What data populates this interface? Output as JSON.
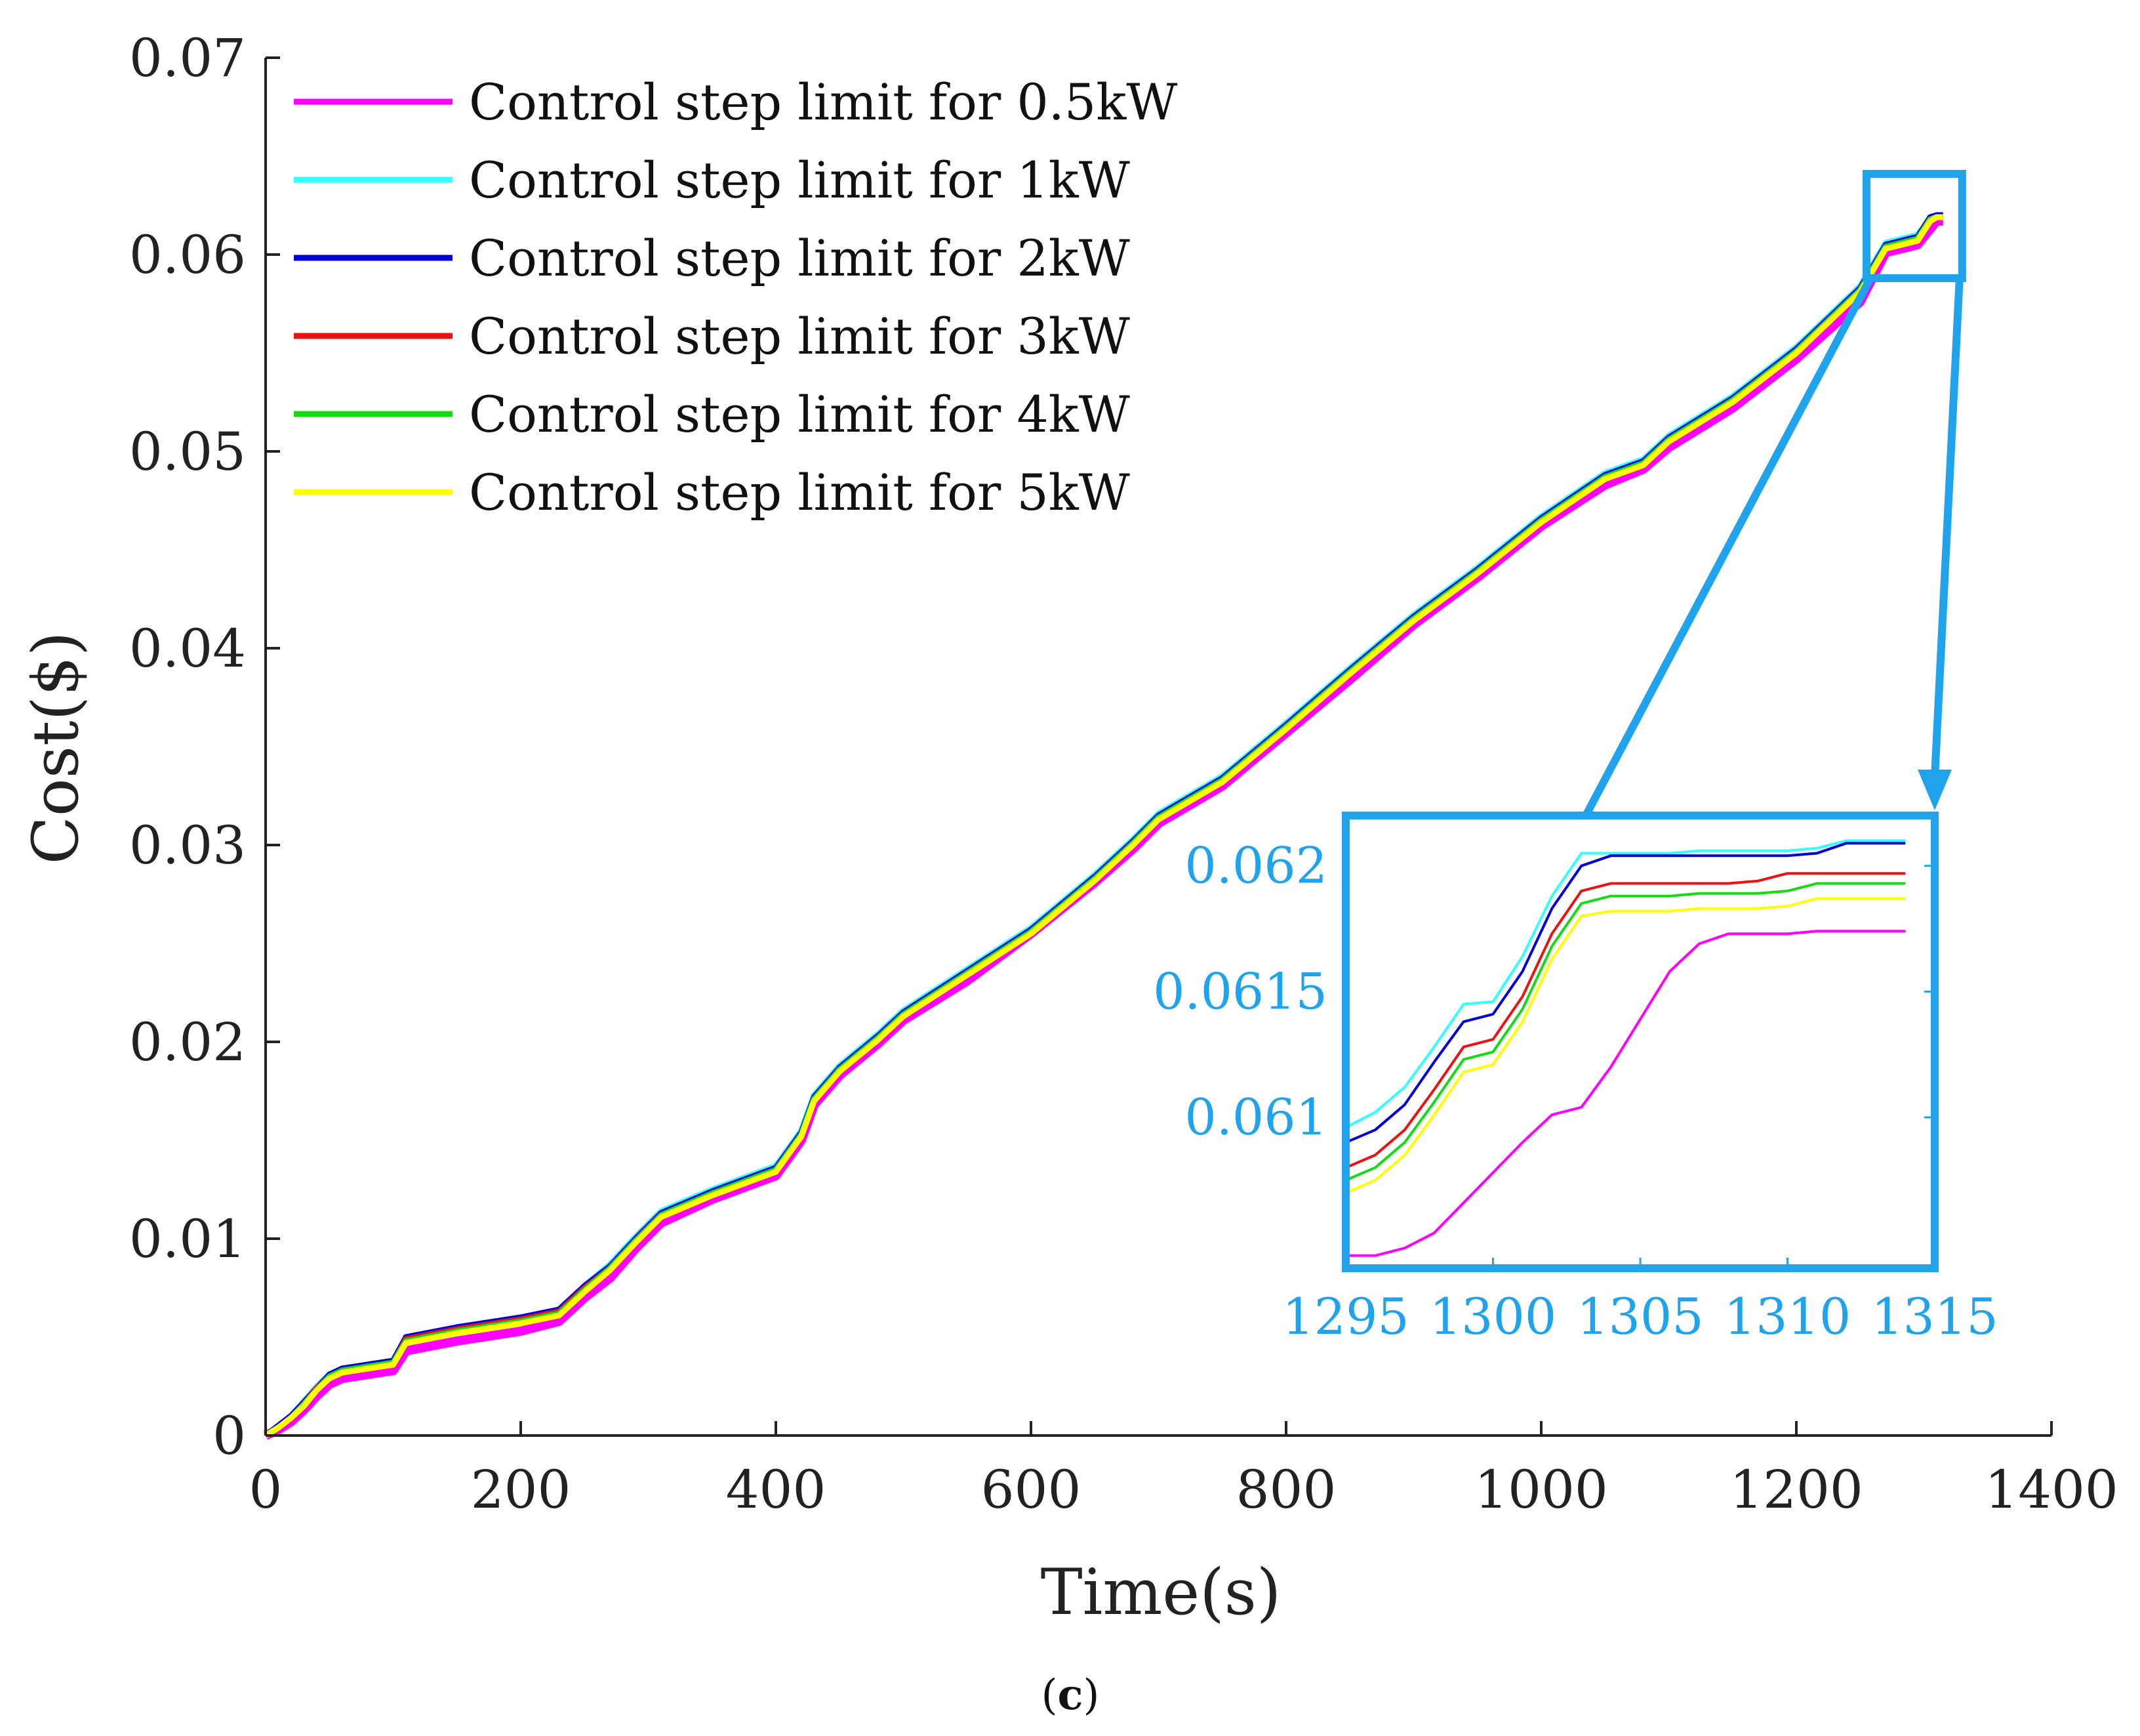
{
  "chart_data": [
    {
      "type": "line",
      "title": "",
      "xlabel": "Time(s)",
      "ylabel": "Cost($)",
      "xlim": [
        0,
        1400
      ],
      "ylim": [
        0,
        0.07
      ],
      "xticks": [
        0,
        200,
        400,
        600,
        800,
        1000,
        1200,
        1400
      ],
      "xtick_labels": [
        "0",
        "200",
        "400",
        "600",
        "800",
        "1000",
        "1200",
        "1400"
      ],
      "yticks": [
        0,
        0.01,
        0.02,
        0.03,
        0.04,
        0.05,
        0.06,
        0.07
      ],
      "ytick_labels": [
        "0",
        "0.01",
        "0.02",
        "0.03",
        "0.04",
        "0.05",
        "0.06",
        "0.07"
      ],
      "legend_position": "top-left",
      "x": [
        0,
        10,
        20,
        30,
        40,
        50,
        60,
        80,
        100,
        110,
        150,
        200,
        230,
        250,
        270,
        290,
        310,
        350,
        400,
        420,
        430,
        450,
        480,
        500,
        550,
        600,
        650,
        680,
        700,
        750,
        800,
        850,
        900,
        950,
        1000,
        1050,
        1080,
        1100,
        1150,
        1200,
        1250,
        1270,
        1295,
        1300,
        1305,
        1310,
        1315
      ],
      "series": [
        {
          "name": "Control step limit for 0.5kW",
          "color": "#ff00ff",
          "values": [
            0,
            0.0003,
            0.0007,
            0.0013,
            0.002,
            0.0026,
            0.0029,
            0.0031,
            0.0033,
            0.0043,
            0.0048,
            0.0053,
            0.0058,
            0.007,
            0.008,
            0.0095,
            0.0108,
            0.012,
            0.0132,
            0.015,
            0.0168,
            0.0183,
            0.0199,
            0.0211,
            0.0231,
            0.0255,
            0.0281,
            0.0298,
            0.0311,
            0.033,
            0.0357,
            0.0384,
            0.0412,
            0.0436,
            0.0462,
            0.0483,
            0.0491,
            0.0502,
            0.0522,
            0.0547,
            0.0576,
            0.0601,
            0.0605,
            0.0609,
            0.0613,
            0.0617,
            0.0617
          ]
        },
        {
          "name": "Control step limit for 1kW",
          "color": "#33ffff",
          "values": [
            0,
            0.0005,
            0.001,
            0.0017,
            0.0025,
            0.0031,
            0.0034,
            0.0036,
            0.0038,
            0.005,
            0.0055,
            0.006,
            0.0064,
            0.0076,
            0.0087,
            0.0101,
            0.0114,
            0.0125,
            0.0137,
            0.0155,
            0.0173,
            0.0188,
            0.0204,
            0.0216,
            0.0237,
            0.0258,
            0.0285,
            0.0303,
            0.0316,
            0.0335,
            0.0362,
            0.039,
            0.0417,
            0.0441,
            0.0467,
            0.0489,
            0.0496,
            0.0508,
            0.0528,
            0.0553,
            0.0584,
            0.0606,
            0.061,
            0.0614,
            0.0619,
            0.062,
            0.062
          ]
        },
        {
          "name": "Control step limit for 2kW",
          "color": "#0000dd",
          "values": [
            0,
            0.0005,
            0.001,
            0.0017,
            0.0024,
            0.0031,
            0.0034,
            0.0036,
            0.0038,
            0.005,
            0.0055,
            0.006,
            0.0064,
            0.0076,
            0.0086,
            0.01,
            0.0113,
            0.0124,
            0.0136,
            0.0154,
            0.0172,
            0.0187,
            0.0203,
            0.0215,
            0.0236,
            0.0257,
            0.0284,
            0.0302,
            0.0315,
            0.0334,
            0.0361,
            0.0389,
            0.0416,
            0.044,
            0.0466,
            0.0488,
            0.0495,
            0.0507,
            0.0527,
            0.0552,
            0.0583,
            0.0605,
            0.0609,
            0.0614,
            0.0619,
            0.062,
            0.062
          ]
        },
        {
          "name": "Control step limit for 3kW",
          "color": "#ee1111",
          "values": [
            0,
            0.0004,
            0.0009,
            0.0016,
            0.0024,
            0.003,
            0.0033,
            0.0035,
            0.0037,
            0.0049,
            0.0054,
            0.0059,
            0.0063,
            0.0075,
            0.0085,
            0.0099,
            0.0112,
            0.0123,
            0.0135,
            0.0153,
            0.0171,
            0.0186,
            0.0202,
            0.0214,
            0.0235,
            0.0256,
            0.0283,
            0.0301,
            0.0314,
            0.0333,
            0.036,
            0.0388,
            0.0415,
            0.0439,
            0.0465,
            0.0487,
            0.0494,
            0.0506,
            0.0526,
            0.0551,
            0.0582,
            0.0604,
            0.0608,
            0.0613,
            0.0618,
            0.0619,
            0.0619
          ]
        },
        {
          "name": "Control step limit for 4kW",
          "color": "#11dd11",
          "values": [
            0,
            0.0004,
            0.0009,
            0.0016,
            0.0023,
            0.003,
            0.0033,
            0.0035,
            0.0037,
            0.0048,
            0.0053,
            0.0058,
            0.0062,
            0.0074,
            0.0085,
            0.0099,
            0.0112,
            0.0123,
            0.0135,
            0.0153,
            0.0171,
            0.0186,
            0.0202,
            0.0214,
            0.0235,
            0.0256,
            0.0283,
            0.0301,
            0.0314,
            0.0333,
            0.036,
            0.0388,
            0.0415,
            0.0439,
            0.0465,
            0.0487,
            0.0494,
            0.0506,
            0.0526,
            0.0551,
            0.0582,
            0.0604,
            0.0608,
            0.0613,
            0.0618,
            0.0619,
            0.0619
          ]
        },
        {
          "name": "Control step limit for 5kW",
          "color": "#ffff00",
          "values": [
            0,
            0.0004,
            0.0009,
            0.0015,
            0.0023,
            0.0029,
            0.0032,
            0.0034,
            0.0036,
            0.0047,
            0.0052,
            0.0057,
            0.0061,
            0.0073,
            0.0084,
            0.0098,
            0.0111,
            0.0122,
            0.0134,
            0.0152,
            0.017,
            0.0185,
            0.0201,
            0.0213,
            0.0234,
            0.0255,
            0.0282,
            0.03,
            0.0313,
            0.0332,
            0.0359,
            0.0387,
            0.0414,
            0.0438,
            0.0464,
            0.0486,
            0.0493,
            0.0505,
            0.0525,
            0.055,
            0.0581,
            0.0603,
            0.0607,
            0.0612,
            0.0617,
            0.0619,
            0.0619
          ]
        }
      ]
    },
    {
      "type": "line",
      "title": "",
      "role": "zoomed inset",
      "xlim": [
        1295,
        1315
      ],
      "ylim": [
        0.0604,
        0.0622
      ],
      "xticks": [
        1295,
        1300,
        1305,
        1310,
        1315
      ],
      "xtick_labels": [
        "1295",
        "1300",
        "1305",
        "1310",
        "1315"
      ],
      "yticks": [
        0.061,
        0.0615,
        0.062
      ],
      "ytick_labels": [
        "0.061",
        "0.0615",
        "0.062"
      ],
      "x": [
        1295,
        1296,
        1297,
        1298,
        1299,
        1300,
        1301,
        1302,
        1303,
        1304,
        1305,
        1306,
        1307,
        1308,
        1309,
        1310,
        1311,
        1312,
        1313,
        1314
      ],
      "series": [
        {
          "name": "Control step limit for 0.5kW",
          "color": "#ff00ff",
          "values": [
            0.06045,
            0.06045,
            0.06048,
            0.06054,
            0.06066,
            0.06078,
            0.0609,
            0.06101,
            0.06104,
            0.0612,
            0.06139,
            0.06158,
            0.06169,
            0.06173,
            0.06173,
            0.06173,
            0.06174,
            0.06174,
            0.06174,
            0.06174
          ]
        },
        {
          "name": "Control step limit for 1kW",
          "color": "#33ffff",
          "values": [
            0.06096,
            0.06102,
            0.06112,
            0.06128,
            0.06145,
            0.06146,
            0.06164,
            0.06188,
            0.06205,
            0.06205,
            0.06205,
            0.06205,
            0.06206,
            0.06206,
            0.06206,
            0.06206,
            0.06207,
            0.0621,
            0.0621,
            0.0621
          ]
        },
        {
          "name": "Control step limit for 2kW",
          "color": "#0000dd",
          "values": [
            0.0609,
            0.06095,
            0.06105,
            0.06122,
            0.06138,
            0.06141,
            0.06158,
            0.06183,
            0.062,
            0.06204,
            0.06204,
            0.06204,
            0.06204,
            0.06204,
            0.06204,
            0.06204,
            0.06205,
            0.06209,
            0.06209,
            0.06209
          ]
        },
        {
          "name": "Control step limit for 3kW",
          "color": "#ee1111",
          "values": [
            0.0608,
            0.06085,
            0.06095,
            0.06111,
            0.06128,
            0.06131,
            0.06148,
            0.06173,
            0.0619,
            0.06193,
            0.06193,
            0.06193,
            0.06193,
            0.06193,
            0.06194,
            0.06197,
            0.06197,
            0.06197,
            0.06197,
            0.06197
          ]
        },
        {
          "name": "Control step limit for 4kW",
          "color": "#11dd11",
          "values": [
            0.06075,
            0.0608,
            0.0609,
            0.06106,
            0.06123,
            0.06126,
            0.06143,
            0.06168,
            0.06185,
            0.06188,
            0.06188,
            0.06188,
            0.06189,
            0.06189,
            0.06189,
            0.0619,
            0.06193,
            0.06193,
            0.06193,
            0.06193
          ]
        },
        {
          "name": "Control step limit for 5kW",
          "color": "#ffff00",
          "values": [
            0.0607,
            0.06075,
            0.06085,
            0.06101,
            0.06118,
            0.06121,
            0.06138,
            0.06163,
            0.0618,
            0.06182,
            0.06182,
            0.06182,
            0.06183,
            0.06183,
            0.06183,
            0.06184,
            0.06187,
            0.06187,
            0.06187,
            0.06187
          ]
        }
      ]
    }
  ],
  "caption": {
    "open": "(",
    "letter": "c",
    "close": ")"
  },
  "colors": {
    "axis": "#222222",
    "inset_accent": "#1fa3ec"
  }
}
